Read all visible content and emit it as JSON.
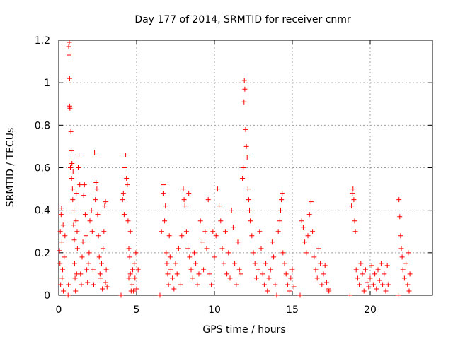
{
  "chart_data": {
    "type": "scatter",
    "title": "Day 177 of 2014, SRMTID for receiver cnmr",
    "xlabel": "GPS time / hours",
    "ylabel": "SRMTID / TECUs",
    "xlim": [
      0,
      24
    ],
    "ylim": [
      0,
      1.2
    ],
    "x_ticks": [
      0,
      5,
      10,
      15,
      20
    ],
    "x_tick_labels": [
      "0",
      "5",
      "10",
      "15",
      "20"
    ],
    "y_ticks": [
      0,
      0.2,
      0.4,
      0.6,
      0.8,
      1,
      1.2
    ],
    "y_tick_labels": [
      "0",
      "0.2",
      "0.4",
      "0.6",
      "0.8",
      "1",
      "1.2"
    ],
    "grid": true,
    "marker": "plus",
    "series": [
      {
        "name": "SRMTID",
        "color": "#ff0000",
        "points": [
          [
            0.05,
            0.21
          ],
          [
            0.08,
            0.15
          ],
          [
            0.1,
            0.3
          ],
          [
            0.12,
            0.05
          ],
          [
            0.15,
            0.38
          ],
          [
            0.18,
            0.41
          ],
          [
            0.2,
            0.25
          ],
          [
            0.22,
            0.08
          ],
          [
            0.25,
            0.12
          ],
          [
            0.28,
            0.33
          ],
          [
            0.3,
            0.02
          ],
          [
            0.35,
            0.18
          ],
          [
            0.4,
            0.28
          ],
          [
            0.6,
            0.0
          ],
          [
            0.62,
            0.05
          ],
          [
            0.64,
            1.17
          ],
          [
            0.66,
            1.13
          ],
          [
            0.68,
            1.19
          ],
          [
            0.7,
            1.02
          ],
          [
            0.7,
            0.89
          ],
          [
            0.72,
            0.88
          ],
          [
            0.75,
            0.6
          ],
          [
            0.78,
            0.77
          ],
          [
            0.8,
            0.68
          ],
          [
            0.82,
            0.55
          ],
          [
            0.85,
            0.62
          ],
          [
            0.88,
            0.5
          ],
          [
            0.9,
            0.45
          ],
          [
            0.92,
            0.58
          ],
          [
            0.95,
            0.33
          ],
          [
            0.98,
            0.4
          ],
          [
            1.0,
            0.26
          ],
          [
            1.02,
            0.15
          ],
          [
            1.05,
            0.08
          ],
          [
            1.08,
            0.02
          ],
          [
            1.1,
            0.35
          ],
          [
            1.12,
            0.48
          ],
          [
            1.15,
            0.1
          ],
          [
            1.18,
            0.3
          ],
          [
            1.2,
            0.22
          ],
          [
            1.25,
            0.6
          ],
          [
            1.3,
            0.66
          ],
          [
            1.35,
            0.52
          ],
          [
            1.4,
            0.1
          ],
          [
            1.45,
            0.05
          ],
          [
            1.5,
            0.18
          ],
          [
            1.55,
            0.25
          ],
          [
            1.6,
            0.47
          ],
          [
            1.65,
            0.52
          ],
          [
            1.7,
            0.38
          ],
          [
            1.75,
            0.28
          ],
          [
            1.8,
            0.12
          ],
          [
            1.85,
            0.06
          ],
          [
            1.9,
            0.15
          ],
          [
            1.95,
            0.2
          ],
          [
            2.0,
            0.35
          ],
          [
            2.1,
            0.4
          ],
          [
            2.15,
            0.3
          ],
          [
            2.2,
            0.12
          ],
          [
            2.25,
            0.05
          ],
          [
            2.3,
            0.67
          ],
          [
            2.35,
            0.45
          ],
          [
            2.4,
            0.53
          ],
          [
            2.45,
            0.5
          ],
          [
            2.5,
            0.38
          ],
          [
            2.55,
            0.28
          ],
          [
            2.6,
            0.18
          ],
          [
            2.65,
            0.1
          ],
          [
            2.7,
            0.08
          ],
          [
            2.75,
            0.15
          ],
          [
            2.8,
            0.03
          ],
          [
            2.85,
            0.22
          ],
          [
            2.9,
            0.3
          ],
          [
            2.95,
            0.42
          ],
          [
            3.0,
            0.44
          ],
          [
            3.05,
            0.12
          ],
          [
            3.1,
            0.04
          ],
          [
            3.0,
            0.06
          ],
          [
            4.0,
            0.0
          ],
          [
            4.1,
            0.45
          ],
          [
            4.15,
            0.48
          ],
          [
            4.2,
            0.38
          ],
          [
            4.25,
            0.6
          ],
          [
            4.3,
            0.66
          ],
          [
            4.35,
            0.55
          ],
          [
            4.4,
            0.52
          ],
          [
            4.45,
            0.35
          ],
          [
            4.5,
            0.22
          ],
          [
            4.55,
            0.18
          ],
          [
            4.6,
            0.1
          ],
          [
            4.7,
            0.05
          ],
          [
            4.75,
            0.12
          ],
          [
            4.8,
            0.02
          ],
          [
            4.85,
            0.15
          ],
          [
            4.9,
            0.08
          ],
          [
            4.95,
            0.2
          ],
          [
            5.0,
            0.03
          ],
          [
            5.1,
            0.12
          ],
          [
            4.6,
            0.3
          ],
          [
            4.65,
            0.02
          ],
          [
            4.5,
            0.08
          ],
          [
            6.5,
            0.0
          ],
          [
            6.6,
            0.3
          ],
          [
            6.7,
            0.48
          ],
          [
            6.75,
            0.52
          ],
          [
            6.8,
            0.35
          ],
          [
            6.85,
            0.42
          ],
          [
            6.9,
            0.2
          ],
          [
            6.95,
            0.15
          ],
          [
            7.0,
            0.1
          ],
          [
            7.05,
            0.05
          ],
          [
            7.1,
            0.28
          ],
          [
            7.15,
            0.18
          ],
          [
            7.2,
            0.12
          ],
          [
            7.3,
            0.08
          ],
          [
            7.4,
            0.03
          ],
          [
            7.5,
            0.15
          ],
          [
            7.6,
            0.1
          ],
          [
            7.7,
            0.22
          ],
          [
            7.8,
            0.05
          ],
          [
            7.9,
            0.28
          ],
          [
            8.0,
            0.5
          ],
          [
            8.05,
            0.45
          ],
          [
            8.1,
            0.42
          ],
          [
            8.2,
            0.3
          ],
          [
            8.3,
            0.22
          ],
          [
            8.35,
            0.48
          ],
          [
            8.4,
            0.18
          ],
          [
            8.5,
            0.12
          ],
          [
            8.6,
            0.08
          ],
          [
            8.7,
            0.2
          ],
          [
            8.8,
            0.15
          ],
          [
            8.9,
            0.05
          ],
          [
            9.0,
            0.1
          ],
          [
            9.1,
            0.35
          ],
          [
            9.2,
            0.25
          ],
          [
            9.3,
            0.12
          ],
          [
            9.4,
            0.3
          ],
          [
            9.5,
            0.22
          ],
          [
            9.6,
            0.45
          ],
          [
            9.7,
            0.1
          ],
          [
            9.8,
            0.05
          ],
          [
            9.9,
            0.3
          ],
          [
            10.0,
            0.18
          ],
          [
            10.1,
            0.28
          ],
          [
            10.2,
            0.5
          ],
          [
            10.3,
            0.42
          ],
          [
            10.4,
            0.35
          ],
          [
            10.5,
            0.22
          ],
          [
            10.6,
            0.15
          ],
          [
            10.7,
            0.3
          ],
          [
            10.8,
            0.1
          ],
          [
            10.9,
            0.2
          ],
          [
            11.0,
            0.08
          ],
          [
            11.1,
            0.4
          ],
          [
            11.2,
            0.32
          ],
          [
            11.3,
            0.15
          ],
          [
            11.4,
            0.05
          ],
          [
            11.5,
            0.25
          ],
          [
            11.6,
            0.12
          ],
          [
            11.7,
            0.1
          ],
          [
            11.8,
            0.55
          ],
          [
            11.85,
            0.6
          ],
          [
            11.9,
            0.91
          ],
          [
            11.92,
            1.01
          ],
          [
            11.95,
            0.97
          ],
          [
            12.0,
            0.78
          ],
          [
            12.05,
            0.7
          ],
          [
            12.1,
            0.65
          ],
          [
            12.15,
            0.5
          ],
          [
            12.2,
            0.45
          ],
          [
            12.25,
            0.4
          ],
          [
            12.3,
            0.35
          ],
          [
            12.4,
            0.28
          ],
          [
            12.5,
            0.2
          ],
          [
            12.6,
            0.15
          ],
          [
            12.7,
            0.08
          ],
          [
            12.8,
            0.12
          ],
          [
            12.9,
            0.3
          ],
          [
            13.0,
            0.22
          ],
          [
            13.1,
            0.1
          ],
          [
            13.2,
            0.05
          ],
          [
            13.3,
            0.15
          ],
          [
            13.4,
            0.02
          ],
          [
            13.5,
            0.08
          ],
          [
            13.6,
            0.12
          ],
          [
            13.7,
            0.25
          ],
          [
            13.8,
            0.18
          ],
          [
            13.9,
            0.05
          ],
          [
            14.0,
            0.0
          ],
          [
            14.1,
            0.3
          ],
          [
            14.2,
            0.35
          ],
          [
            14.25,
            0.4
          ],
          [
            14.3,
            0.45
          ],
          [
            14.35,
            0.48
          ],
          [
            14.4,
            0.2
          ],
          [
            14.5,
            0.15
          ],
          [
            14.6,
            0.1
          ],
          [
            14.7,
            0.05
          ],
          [
            14.8,
            0.02
          ],
          [
            14.9,
            0.08
          ],
          [
            15.0,
            0.12
          ],
          [
            15.1,
            0.04
          ],
          [
            15.5,
            0.0
          ],
          [
            15.6,
            0.35
          ],
          [
            15.7,
            0.32
          ],
          [
            15.8,
            0.25
          ],
          [
            15.9,
            0.2
          ],
          [
            16.0,
            0.28
          ],
          [
            16.1,
            0.38
          ],
          [
            16.2,
            0.44
          ],
          [
            16.3,
            0.3
          ],
          [
            16.4,
            0.18
          ],
          [
            16.5,
            0.12
          ],
          [
            16.6,
            0.08
          ],
          [
            16.7,
            0.22
          ],
          [
            16.8,
            0.15
          ],
          [
            16.9,
            0.05
          ],
          [
            17.0,
            0.1
          ],
          [
            17.1,
            0.14
          ],
          [
            17.2,
            0.06
          ],
          [
            17.3,
            0.03
          ],
          [
            17.35,
            0.02
          ],
          [
            18.7,
            0.0
          ],
          [
            18.8,
            0.42
          ],
          [
            18.85,
            0.48
          ],
          [
            18.9,
            0.5
          ],
          [
            18.95,
            0.45
          ],
          [
            19.0,
            0.35
          ],
          [
            19.05,
            0.3
          ],
          [
            19.1,
            0.12
          ],
          [
            19.2,
            0.08
          ],
          [
            19.3,
            0.05
          ],
          [
            19.4,
            0.15
          ],
          [
            19.5,
            0.1
          ],
          [
            19.6,
            0.02
          ],
          [
            19.7,
            0.12
          ],
          [
            19.8,
            0.06
          ],
          [
            19.9,
            0.04
          ],
          [
            20.0,
            0.08
          ],
          [
            20.1,
            0.14
          ],
          [
            20.2,
            0.05
          ],
          [
            20.3,
            0.1
          ],
          [
            20.4,
            0.03
          ],
          [
            20.5,
            0.12
          ],
          [
            20.6,
            0.07
          ],
          [
            20.7,
            0.15
          ],
          [
            20.8,
            0.05
          ],
          [
            20.9,
            0.1
          ],
          [
            21.0,
            0.02
          ],
          [
            21.1,
            0.14
          ],
          [
            21.15,
            0.05
          ],
          [
            21.8,
            0.0
          ],
          [
            21.85,
            0.45
          ],
          [
            21.9,
            0.37
          ],
          [
            21.95,
            0.28
          ],
          [
            22.0,
            0.22
          ],
          [
            22.05,
            0.18
          ],
          [
            22.1,
            0.12
          ],
          [
            22.2,
            0.08
          ],
          [
            22.3,
            0.15
          ],
          [
            22.4,
            0.05
          ],
          [
            22.45,
            0.2
          ],
          [
            22.5,
            0.02
          ],
          [
            22.55,
            0.1
          ]
        ]
      }
    ]
  }
}
